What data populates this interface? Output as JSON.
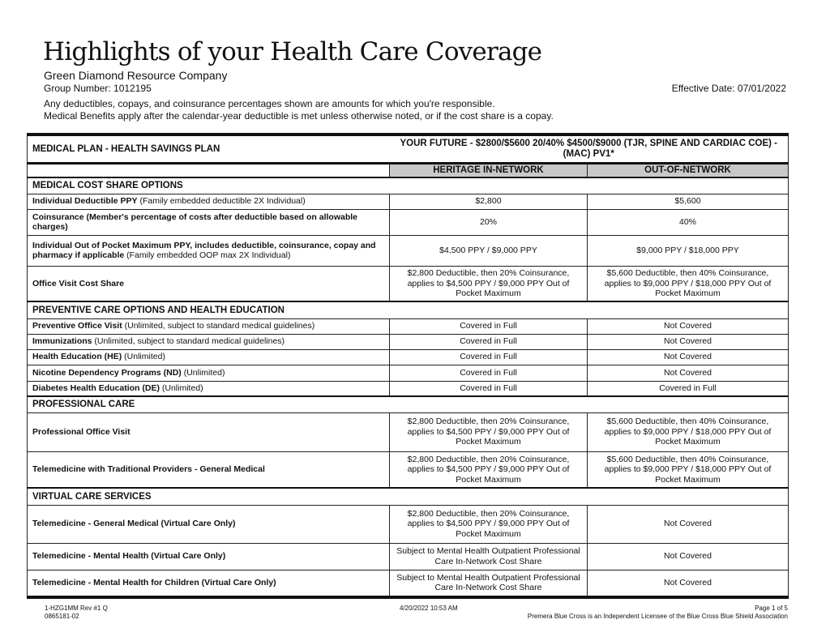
{
  "header": {
    "title": "Highlights of your Health Care Coverage",
    "company": "Green Diamond Resource Company",
    "group_number": "Group Number: 1012195",
    "effective_date": "Effective Date: 07/01/2022",
    "note1": "Any deductibles, copays, and coinsurance percentages shown are amounts for which you're responsible.",
    "note2": "Medical Benefits apply after the calendar-year deductible is met unless otherwise noted, or if the cost share is a copay."
  },
  "table": {
    "plan_label": "MEDICAL PLAN - HEALTH SAVINGS PLAN",
    "plan_name": "YOUR FUTURE - $2800/$5600 20/40%  $4500/$9000 (TJR, SPINE AND CARDIAC COE) -  (MAC) PV1*",
    "col_in": "HERITAGE IN-NETWORK",
    "col_out": "OUT-OF-NETWORK",
    "sections": [
      {
        "title": "MEDICAL COST SHARE OPTIONS",
        "rows": [
          {
            "bold": "Individual Deductible PPY",
            "rest": " (Family embedded deductible 2X Individual)",
            "in": "$2,800",
            "out": "$5,600"
          },
          {
            "bold": "Coinsurance (Member's percentage of costs after deductible based on allowable charges)",
            "rest": "",
            "in": "20%",
            "out": "40%"
          },
          {
            "bold": "Individual Out of Pocket Maximum PPY, includes deductible, coinsurance, copay and pharmacy if applicable",
            "rest": " (Family embedded OOP max 2X Individual)",
            "in": "$4,500 PPY / $9,000 PPY",
            "out": "$9,000 PPY / $18,000 PPY"
          },
          {
            "bold": "Office Visit Cost Share",
            "rest": "",
            "in": "$2,800 Deductible, then 20% Coinsurance, applies to $4,500 PPY / $9,000 PPY Out of Pocket Maximum",
            "out": "$5,600 Deductible, then 40% Coinsurance, applies to $9,000 PPY / $18,000 PPY Out of Pocket Maximum"
          }
        ]
      },
      {
        "title": "PREVENTIVE CARE OPTIONS AND HEALTH EDUCATION",
        "rows": [
          {
            "bold": "Preventive Office Visit",
            "rest": " (Unlimited, subject to standard medical guidelines)",
            "in": "Covered in Full",
            "out": "Not Covered"
          },
          {
            "bold": "Immunizations",
            "rest": " (Unlimited, subject to standard medical guidelines)",
            "in": "Covered in Full",
            "out": "Not Covered"
          },
          {
            "bold": "Health Education (HE)",
            "rest": " (Unlimited)",
            "in": "Covered in Full",
            "out": "Not Covered"
          },
          {
            "bold": "Nicotine Dependency Programs (ND)",
            "rest": " (Unlimited)",
            "in": "Covered in Full",
            "out": "Not Covered"
          },
          {
            "bold": "Diabetes Health Education (DE)",
            "rest": " (Unlimited)",
            "in": "Covered in Full",
            "out": "Covered in Full"
          }
        ]
      },
      {
        "title": "PROFESSIONAL CARE",
        "rows": [
          {
            "bold": "Professional Office Visit",
            "rest": "",
            "in": "$2,800 Deductible, then 20% Coinsurance, applies to $4,500 PPY / $9,000 PPY Out of Pocket Maximum",
            "out": "$5,600 Deductible, then 40% Coinsurance, applies to $9,000 PPY / $18,000 PPY Out of Pocket Maximum"
          },
          {
            "bold": "Telemedicine with Traditional Providers - General Medical",
            "rest": "",
            "in": "$2,800 Deductible, then 20% Coinsurance, applies to $4,500 PPY / $9,000 PPY Out of Pocket Maximum",
            "out": "$5,600 Deductible, then 40% Coinsurance, applies to $9,000 PPY / $18,000 PPY Out of Pocket Maximum"
          }
        ]
      },
      {
        "title": "VIRTUAL CARE SERVICES",
        "rows": [
          {
            "bold": "Telemedicine - General Medical (Virtual Care Only)",
            "rest": "",
            "in": "$2,800 Deductible, then 20% Coinsurance, applies to $4,500 PPY / $9,000 PPY Out of Pocket Maximum",
            "out": "Not Covered"
          },
          {
            "bold": "Telemedicine - Mental Health (Virtual Care Only)",
            "rest": "",
            "in": "Subject to Mental Health Outpatient Professional Care In-Network Cost Share",
            "out": "Not Covered"
          },
          {
            "bold": "Telemedicine - Mental Health for Children (Virtual Care Only)",
            "rest": "",
            "in": "Subject to Mental Health Outpatient Professional Care In-Network Cost Share",
            "out": "Not Covered"
          }
        ]
      }
    ]
  },
  "footer": {
    "form_id": "1-HZG1MM Rev #1  Q",
    "doc_id": "0865181-02",
    "timestamp": "4/20/2022 10:53 AM",
    "page": "Page 1 of 5",
    "license": "Premera Blue Cross is an Independent Licensee of the Blue Cross Blue Shield Association"
  }
}
